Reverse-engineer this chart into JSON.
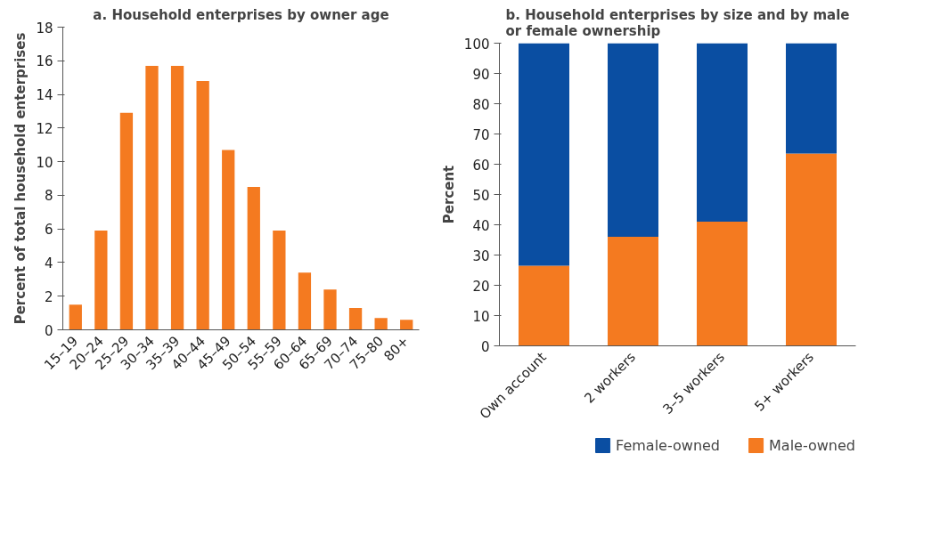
{
  "chart_data": [
    {
      "type": "bar",
      "title": "a. Household enterprises by owner age",
      "ylabel": "Percent of total household enterprises",
      "categories": [
        "15–19",
        "20–24",
        "25–29",
        "30–34",
        "35–39",
        "40–44",
        "45–49",
        "50–54",
        "55–59",
        "60–64",
        "65–69",
        "70–74",
        "75–80",
        "80+"
      ],
      "series": [
        {
          "color": "#f47a20",
          "values": [
            1.5,
            5.9,
            12.9,
            15.7,
            15.7,
            14.8,
            10.7,
            8.5,
            5.9,
            3.4,
            2.4,
            1.3,
            0.7,
            0.6
          ]
        }
      ],
      "ylim": [
        0,
        18
      ],
      "yticks": [
        0,
        2,
        4,
        6,
        8,
        10,
        12,
        14,
        16,
        18
      ],
      "grid": false
    },
    {
      "type": "bar",
      "title": "b. Household enterprises by size and by male or female ownership",
      "ylabel": "Percent",
      "categories": [
        "Own account",
        "2 workers",
        "3–5 workers",
        "5+ workers"
      ],
      "stacked": true,
      "series": [
        {
          "name": "Male-owned",
          "color": "#f47a20",
          "values": [
            26.5,
            36,
            41,
            63.5
          ]
        },
        {
          "name": "Female-owned",
          "color": "#0a4ea2",
          "values": [
            73.5,
            64,
            59,
            36.5
          ]
        }
      ],
      "ylim": [
        0,
        100
      ],
      "yticks": [
        0,
        10,
        20,
        30,
        40,
        50,
        60,
        70,
        80,
        90,
        100
      ],
      "grid": false,
      "legend": "bottom"
    }
  ]
}
